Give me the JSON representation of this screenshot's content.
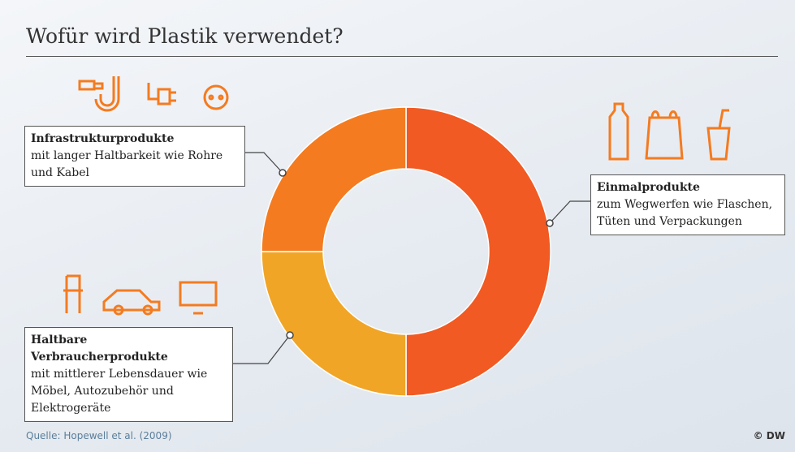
{
  "chart_data": {
    "type": "donut",
    "title": "Wofür wird Plastik verwendet?",
    "categories": [
      "Einmalprodukte",
      "Haltbare Verbraucherprodukte",
      "Infrastrukturprodukte"
    ],
    "descriptions": [
      "zum Wegwerfen wie Flaschen, Tüten und Verpackungen",
      "mit mittlerer Lebensdauer wie Möbel, Autozubehör und Elektrogeräte",
      "mit langer Haltbarkeit wie Rohre und Kabel"
    ],
    "values": [
      50,
      25,
      25
    ],
    "colors": [
      "#f15a22",
      "#f0a526",
      "#f47b20"
    ],
    "source": "Quelle: Hopewell et al. (2009)",
    "credit": "© DW"
  }
}
